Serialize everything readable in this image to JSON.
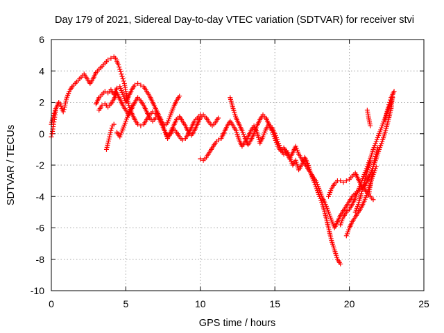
{
  "chart_data": {
    "type": "scatter",
    "title": "Day 179 of 2021, Sidereal Day-to-day VTEC variation (SDTVAR) for receiver stvi",
    "xlabel": "GPS time / hours",
    "ylabel": "SDTVAR / TECUs",
    "xlim": [
      0,
      25
    ],
    "ylim": [
      -10,
      6
    ],
    "xticks": [
      "0",
      "5",
      "10",
      "15",
      "20",
      "25"
    ],
    "yticks": [
      "-10",
      "-8",
      "-6",
      "-4",
      "-2",
      "0",
      "2",
      "4",
      "6"
    ],
    "grid": true,
    "marker": "+",
    "color": "#ff0000",
    "series": [
      {
        "x": [
          0.0,
          0.1,
          0.2,
          0.3,
          0.4,
          0.5,
          0.6,
          0.7,
          0.8,
          0.9,
          1.0,
          1.2,
          1.4,
          1.6,
          1.8,
          2.0,
          2.2,
          2.4,
          2.6,
          2.8,
          3.0,
          3.2,
          3.4,
          3.6,
          3.8,
          4.0,
          4.2,
          4.4
        ],
        "y": [
          0.6,
          1.0,
          1.3,
          1.6,
          1.8,
          2.0,
          1.9,
          1.6,
          1.4,
          1.7,
          2.2,
          2.7,
          3.0,
          3.2,
          3.4,
          3.6,
          3.8,
          3.5,
          3.2,
          3.5,
          3.9,
          4.1,
          4.3,
          4.5,
          4.7,
          4.8,
          4.9,
          4.7
        ]
      },
      {
        "x": [
          0.0,
          0.05,
          0.1,
          0.15,
          0.2,
          0.25,
          0.3
        ],
        "y": [
          -0.2,
          0.0,
          0.3,
          0.6,
          0.9,
          1.2,
          1.5
        ]
      },
      {
        "x": [
          3.0,
          3.2,
          3.4,
          3.6,
          3.8,
          4.0,
          4.2,
          4.4,
          4.6,
          4.8,
          5.0,
          5.2,
          5.4,
          5.6,
          5.8,
          6.0,
          6.2,
          6.4,
          6.6,
          6.8,
          7.0,
          7.2,
          7.4,
          7.6,
          7.8,
          8.0,
          8.2,
          8.4,
          8.6
        ],
        "y": [
          1.9,
          2.3,
          2.5,
          2.7,
          2.6,
          2.8,
          2.5,
          2.9,
          3.0,
          2.5,
          2.0,
          2.4,
          2.8,
          3.1,
          3.2,
          3.1,
          3.0,
          2.7,
          2.4,
          2.0,
          1.6,
          1.2,
          0.8,
          0.5,
          0.7,
          1.2,
          1.7,
          2.1,
          2.4
        ]
      },
      {
        "x": [
          3.2,
          3.4,
          3.6,
          3.8,
          4.0,
          4.2,
          4.4,
          4.6,
          4.8,
          5.0,
          5.2,
          5.4,
          5.6,
          5.8,
          6.0,
          6.2,
          6.4,
          6.6,
          6.8,
          7.0
        ],
        "y": [
          1.5,
          1.8,
          1.9,
          1.7,
          1.9,
          2.2,
          2.6,
          2.2,
          1.8,
          1.5,
          1.2,
          1.6,
          2.0,
          2.3,
          2.1,
          1.8,
          1.4,
          1.0,
          0.8,
          1.0
        ]
      },
      {
        "x": [
          3.7,
          3.8,
          3.9,
          4.0,
          4.1,
          4.2
        ],
        "y": [
          -1.0,
          -0.6,
          -0.2,
          0.2,
          0.5,
          0.6
        ]
      },
      {
        "x": [
          4.4,
          4.5,
          4.6,
          4.7,
          4.8,
          4.9,
          5.0,
          5.1,
          5.2,
          5.3,
          5.4,
          5.5,
          5.6,
          5.8,
          6.0,
          6.2,
          6.4,
          6.6,
          6.8,
          7.0,
          7.2,
          7.4,
          7.6,
          7.8,
          8.0,
          8.2,
          8.4,
          8.6,
          8.8,
          9.0,
          9.2,
          9.4,
          9.6,
          9.8,
          10.0,
          10.2,
          10.4,
          10.6,
          10.8,
          11.0,
          11.2
        ],
        "y": [
          4.6,
          4.4,
          4.1,
          3.8,
          3.5,
          3.2,
          2.7,
          2.2,
          1.8,
          1.5,
          1.3,
          1.1,
          0.9,
          0.6,
          0.5,
          0.6,
          0.9,
          1.2,
          1.4,
          1.3,
          1.0,
          0.6,
          0.2,
          -0.2,
          0.1,
          0.5,
          0.9,
          1.1,
          0.8,
          0.5,
          0.1,
          -0.1,
          0.2,
          0.6,
          1.0,
          1.2,
          1.0,
          0.7,
          0.5,
          0.7,
          1.0
        ]
      },
      {
        "x": [
          4.4,
          4.6,
          4.8,
          5.0,
          5.2,
          5.4
        ],
        "y": [
          0.1,
          -0.2,
          0.3,
          0.8,
          1.3,
          1.8
        ]
      },
      {
        "x": [
          7.6,
          7.8,
          8.0,
          8.2,
          8.4,
          8.6,
          8.8,
          9.0,
          9.2,
          9.4,
          9.6,
          9.8,
          10.0
        ],
        "y": [
          0.2,
          -0.3,
          0.0,
          0.3,
          0.1,
          -0.2,
          -0.4,
          -0.3,
          0.0,
          0.4,
          0.8,
          1.0,
          1.2
        ]
      },
      {
        "x": [
          10.0,
          10.2,
          10.4,
          10.6,
          10.8,
          11.0,
          11.2,
          11.4,
          11.6,
          11.8,
          12.0,
          12.2,
          12.4,
          12.6,
          12.8,
          13.0,
          13.2,
          13.4,
          13.6,
          13.8,
          14.0,
          14.2,
          14.4,
          14.6,
          14.8,
          15.0,
          15.2,
          15.4,
          15.6,
          15.8,
          16.0,
          16.2,
          16.4,
          16.6,
          16.8,
          17.0,
          17.2,
          17.4,
          17.6,
          17.8,
          18.0,
          18.2,
          18.4,
          18.6,
          18.8,
          19.0,
          19.2,
          19.4
        ],
        "y": [
          -1.6,
          -1.7,
          -1.5,
          -1.2,
          -0.9,
          -0.6,
          -0.4,
          -0.3,
          0.1,
          0.5,
          0.8,
          0.5,
          0.2,
          -0.4,
          -0.8,
          -0.5,
          -0.2,
          0.2,
          0.5,
          0.1,
          -0.6,
          -0.2,
          0.3,
          0.6,
          0.4,
          0.0,
          -0.5,
          -1.0,
          -1.3,
          -1.1,
          -1.5,
          -2.0,
          -1.7,
          -2.3,
          -2.0,
          -1.5,
          -1.9,
          -2.5,
          -3.0,
          -3.5,
          -4.0,
          -4.5,
          -5.2,
          -6.0,
          -6.8,
          -7.4,
          -8.0,
          -8.3
        ]
      },
      {
        "x": [
          12.0,
          12.2,
          12.4,
          12.6,
          12.8,
          13.0,
          13.2,
          13.4,
          13.6,
          13.8,
          14.0,
          14.2,
          14.4,
          14.6,
          14.8,
          15.0,
          15.2,
          15.4,
          15.6,
          15.8,
          16.0,
          16.2,
          16.4,
          16.6,
          16.8,
          17.0,
          17.2,
          17.4,
          17.6,
          17.8,
          18.0,
          18.2,
          18.4,
          18.6,
          18.8,
          19.0,
          19.2,
          19.4,
          19.6,
          19.8,
          20.0,
          20.2,
          20.4,
          20.6,
          20.8,
          21.0,
          21.2,
          21.4,
          21.6
        ],
        "y": [
          2.3,
          1.6,
          1.0,
          0.6,
          0.2,
          -0.3,
          -0.7,
          -0.4,
          0.0,
          0.5,
          0.9,
          1.2,
          1.0,
          0.6,
          0.2,
          -0.3,
          -0.8,
          -1.1,
          -0.9,
          -1.3,
          -1.6,
          -1.2,
          -0.8,
          -1.3,
          -1.6,
          -1.9,
          -2.2,
          -2.5,
          -2.8,
          -3.1,
          -3.6,
          -4.1,
          -4.5,
          -5.0,
          -5.5,
          -6.0,
          -5.6,
          -5.2,
          -4.9,
          -4.6,
          -4.3,
          -4.0,
          -3.8,
          -3.6,
          -3.4,
          -3.5,
          -3.8,
          -4.0,
          -4.2
        ]
      },
      {
        "x": [
          18.6,
          18.8,
          19.0,
          19.2,
          19.4,
          19.6,
          19.8,
          20.0,
          20.2,
          20.4,
          20.6,
          20.8,
          21.0,
          21.2,
          21.4,
          21.6,
          21.8,
          22.0,
          22.2,
          22.4,
          22.6,
          22.8,
          22.9
        ],
        "y": [
          -4.0,
          -3.5,
          -3.2,
          -3.0,
          -3.0,
          -3.1,
          -3.0,
          -2.9,
          -2.7,
          -2.5,
          -2.9,
          -3.3,
          -3.4,
          -3.0,
          -2.6,
          -2.1,
          -1.6,
          -1.0,
          -0.5,
          0.1,
          0.8,
          1.6,
          2.5
        ]
      },
      {
        "x": [
          19.4,
          19.6,
          19.8,
          20.0,
          20.2,
          20.4,
          20.6,
          20.8,
          21.0,
          21.2,
          21.4,
          21.6,
          21.8,
          22.0,
          22.2,
          22.4,
          22.6,
          22.8,
          22.9
        ],
        "y": [
          -5.8,
          -5.3,
          -5.0,
          -4.8,
          -4.5,
          -4.1,
          -3.6,
          -3.1,
          -2.6,
          -2.1,
          -1.6,
          -1.0,
          -0.5,
          0.0,
          0.5,
          1.0,
          1.5,
          2.0,
          2.3
        ]
      },
      {
        "x": [
          19.8,
          20.0,
          20.2,
          20.4,
          20.6,
          20.8,
          21.0,
          21.2,
          21.4,
          21.6,
          21.8
        ],
        "y": [
          -6.5,
          -6.0,
          -5.6,
          -5.3,
          -5.0,
          -4.7,
          -4.3,
          -3.8,
          -3.2,
          -2.6,
          -2.1
        ]
      },
      {
        "x": [
          20.4,
          20.6,
          20.8,
          21.0,
          21.2,
          21.4
        ],
        "y": [
          -5.0,
          -4.5,
          -3.8,
          -3.1,
          -2.4,
          -1.8
        ]
      },
      {
        "x": [
          21.3,
          21.4,
          21.5,
          21.6,
          21.7,
          21.8,
          21.9
        ],
        "y": [
          -3.9,
          -3.3,
          -2.7,
          -2.1,
          -1.6,
          -1.3,
          -0.9
        ]
      },
      {
        "x": [
          21.2,
          21.3,
          21.4
        ],
        "y": [
          1.5,
          1.0,
          0.5
        ]
      },
      {
        "x": [
          22.4,
          22.5,
          22.6,
          22.7,
          22.8,
          22.9,
          23.0
        ],
        "y": [
          0.9,
          1.3,
          1.7,
          2.0,
          2.3,
          2.5,
          2.7
        ]
      }
    ]
  }
}
